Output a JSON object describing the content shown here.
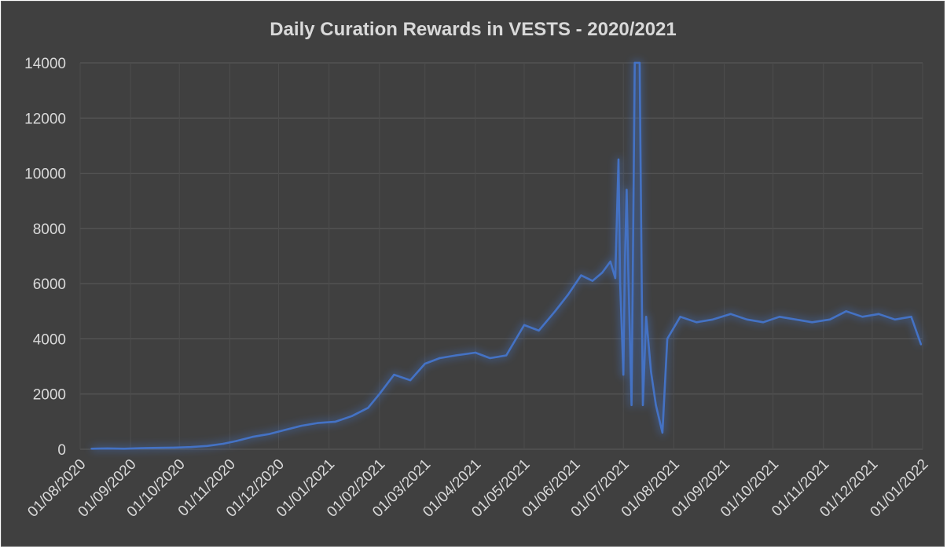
{
  "chart_data": {
    "type": "line",
    "title": "Daily Curation Rewards in VESTS - 2020/2021",
    "xlabel": "",
    "ylabel": "",
    "ylim": [
      0,
      14000
    ],
    "yticks": [
      "0",
      "2000",
      "4000",
      "6000",
      "8000",
      "10000",
      "12000",
      "14000"
    ],
    "xticks": [
      "01/08/2020",
      "01/09/2020",
      "01/10/2020",
      "01/11/2020",
      "01/12/2020",
      "01/01/2021",
      "01/02/2021",
      "01/03/2021",
      "01/04/2021",
      "01/05/2021",
      "01/06/2021",
      "01/07/2021",
      "01/08/2021",
      "01/09/2021",
      "01/10/2021",
      "01/11/2021",
      "01/12/2021",
      "01/01/2022"
    ],
    "xlim": [
      "2020-08-01",
      "2022-01-01"
    ],
    "grid": true,
    "legend": "none",
    "line_color": "#4472c4",
    "background_color": "#404040",
    "series": [
      {
        "x": [
          "2020-08-08",
          "2020-08-18",
          "2020-08-28",
          "2020-09-08",
          "2020-09-18",
          "2020-09-28",
          "2020-10-08",
          "2020-10-18",
          "2020-10-28",
          "2020-11-05",
          "2020-11-15",
          "2020-11-25",
          "2020-12-05",
          "2020-12-15",
          "2020-12-25",
          "2021-01-05",
          "2021-01-15",
          "2021-01-25",
          "2021-02-01",
          "2021-02-10",
          "2021-02-20",
          "2021-03-01",
          "2021-03-10",
          "2021-03-20",
          "2021-04-01",
          "2021-04-10",
          "2021-04-20",
          "2021-05-01",
          "2021-05-10",
          "2021-05-20",
          "2021-05-28",
          "2021-06-05",
          "2021-06-12",
          "2021-06-18",
          "2021-06-23",
          "2021-06-26",
          "2021-06-28",
          "2021-06-29",
          "2021-07-01",
          "2021-07-02",
          "2021-07-03",
          "2021-07-04",
          "2021-07-06",
          "2021-07-08",
          "2021-07-11",
          "2021-07-13",
          "2021-07-15",
          "2021-07-18",
          "2021-07-21",
          "2021-07-25",
          "2021-07-28",
          "2021-08-05",
          "2021-08-15",
          "2021-08-25",
          "2021-09-05",
          "2021-09-15",
          "2021-09-25",
          "2021-10-05",
          "2021-10-15",
          "2021-10-25",
          "2021-11-05",
          "2021-11-15",
          "2021-11-25",
          "2021-12-05",
          "2021-12-15",
          "2021-12-25",
          "2021-12-31"
        ],
        "y": [
          20,
          30,
          20,
          40,
          50,
          60,
          80,
          120,
          200,
          300,
          450,
          550,
          700,
          850,
          950,
          1000,
          1200,
          1500,
          2000,
          2700,
          2500,
          3100,
          3300,
          3400,
          3500,
          3300,
          3400,
          4500,
          4300,
          5000,
          5600,
          6300,
          6100,
          6400,
          6800,
          6200,
          10500,
          6000,
          2700,
          7000,
          9400,
          6500,
          1600,
          14000,
          14000,
          1600,
          4800,
          2800,
          1600,
          600,
          4000,
          4800,
          4600,
          4700,
          4900,
          4700,
          4600,
          4800,
          4700,
          4600,
          4700,
          5000,
          4800,
          4900,
          4700,
          4800,
          3800
        ]
      }
    ]
  }
}
